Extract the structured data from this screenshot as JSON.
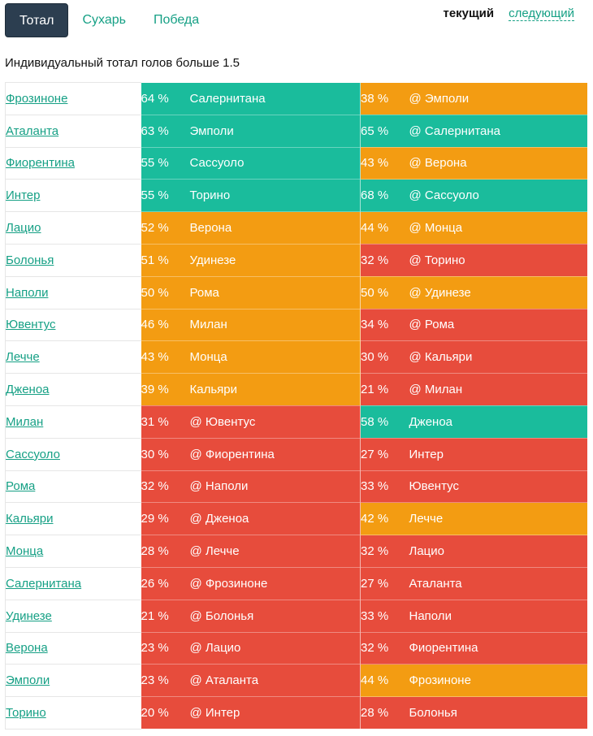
{
  "tabs": [
    {
      "label": "Тотал",
      "active": true
    },
    {
      "label": "Сухарь",
      "active": false
    },
    {
      "label": "Победа",
      "active": false
    }
  ],
  "period": {
    "current": "текущий",
    "next": "следующий"
  },
  "subtitle": "Индивидуальный тотал голов больше 1.5",
  "colors": {
    "green": "#1abc9c",
    "orange": "#f39c12",
    "red": "#e74c3c",
    "link": "#16a085",
    "active_tab": "#2c3e50"
  },
  "rows": [
    {
      "team": "Фрозиноне",
      "p1": "64 %",
      "o1": "Салернитана",
      "c1": "g",
      "p2": "38 %",
      "o2": "@ Эмполи",
      "c2": "o"
    },
    {
      "team": "Аталанта",
      "p1": "63 %",
      "o1": "Эмполи",
      "c1": "g",
      "p2": "65 %",
      "o2": "@ Салернитана",
      "c2": "g"
    },
    {
      "team": "Фиорентина",
      "p1": "55 %",
      "o1": "Сассуоло",
      "c1": "g",
      "p2": "43 %",
      "o2": "@ Верона",
      "c2": "o"
    },
    {
      "team": "Интер",
      "p1": "55 %",
      "o1": "Торино",
      "c1": "g",
      "p2": "68 %",
      "o2": "@ Сассуоло",
      "c2": "g"
    },
    {
      "team": "Лацио",
      "p1": "52 %",
      "o1": "Верона",
      "c1": "o",
      "p2": "44 %",
      "o2": "@ Монца",
      "c2": "o"
    },
    {
      "team": "Болонья",
      "p1": "51 %",
      "o1": "Удинезе",
      "c1": "o",
      "p2": "32 %",
      "o2": "@ Торино",
      "c2": "r"
    },
    {
      "team": "Наполи",
      "p1": "50 %",
      "o1": "Рома",
      "c1": "o",
      "p2": "50 %",
      "o2": "@ Удинезе",
      "c2": "o"
    },
    {
      "team": "Ювентус",
      "p1": "46 %",
      "o1": "Милан",
      "c1": "o",
      "p2": "34 %",
      "o2": "@ Рома",
      "c2": "r"
    },
    {
      "team": "Лечче",
      "p1": "43 %",
      "o1": "Монца",
      "c1": "o",
      "p2": "30 %",
      "o2": "@ Кальяри",
      "c2": "r"
    },
    {
      "team": "Дженоа",
      "p1": "39 %",
      "o1": "Кальяри",
      "c1": "o",
      "p2": "21 %",
      "o2": "@ Милан",
      "c2": "r"
    },
    {
      "team": "Милан",
      "p1": "31 %",
      "o1": "@ Ювентус",
      "c1": "r",
      "p2": "58 %",
      "o2": "Дженоа",
      "c2": "g"
    },
    {
      "team": "Сассуоло",
      "p1": "30 %",
      "o1": "@ Фиорентина",
      "c1": "r",
      "p2": "27 %",
      "o2": "Интер",
      "c2": "r"
    },
    {
      "team": "Рома",
      "p1": "32 %",
      "o1": "@ Наполи",
      "c1": "r",
      "p2": "33 %",
      "o2": "Ювентус",
      "c2": "r"
    },
    {
      "team": "Кальяри",
      "p1": "29 %",
      "o1": "@ Дженоа",
      "c1": "r",
      "p2": "42 %",
      "o2": "Лечче",
      "c2": "o"
    },
    {
      "team": "Монца",
      "p1": "28 %",
      "o1": "@ Лечче",
      "c1": "r",
      "p2": "32 %",
      "o2": "Лацио",
      "c2": "r"
    },
    {
      "team": "Салернитана",
      "p1": "26 %",
      "o1": "@ Фрозиноне",
      "c1": "r",
      "p2": "27 %",
      "o2": "Аталанта",
      "c2": "r"
    },
    {
      "team": "Удинезе",
      "p1": "21 %",
      "o1": "@ Болонья",
      "c1": "r",
      "p2": "33 %",
      "o2": "Наполи",
      "c2": "r"
    },
    {
      "team": "Верона",
      "p1": "23 %",
      "o1": "@ Лацио",
      "c1": "r",
      "p2": "32 %",
      "o2": "Фиорентина",
      "c2": "r"
    },
    {
      "team": "Эмполи",
      "p1": "23 %",
      "o1": "@ Аталанта",
      "c1": "r",
      "p2": "44 %",
      "o2": "Фрозиноне",
      "c2": "o"
    },
    {
      "team": "Торино",
      "p1": "20 %",
      "o1": "@ Интер",
      "c1": "r",
      "p2": "28 %",
      "o2": "Болонья",
      "c2": "r"
    }
  ]
}
